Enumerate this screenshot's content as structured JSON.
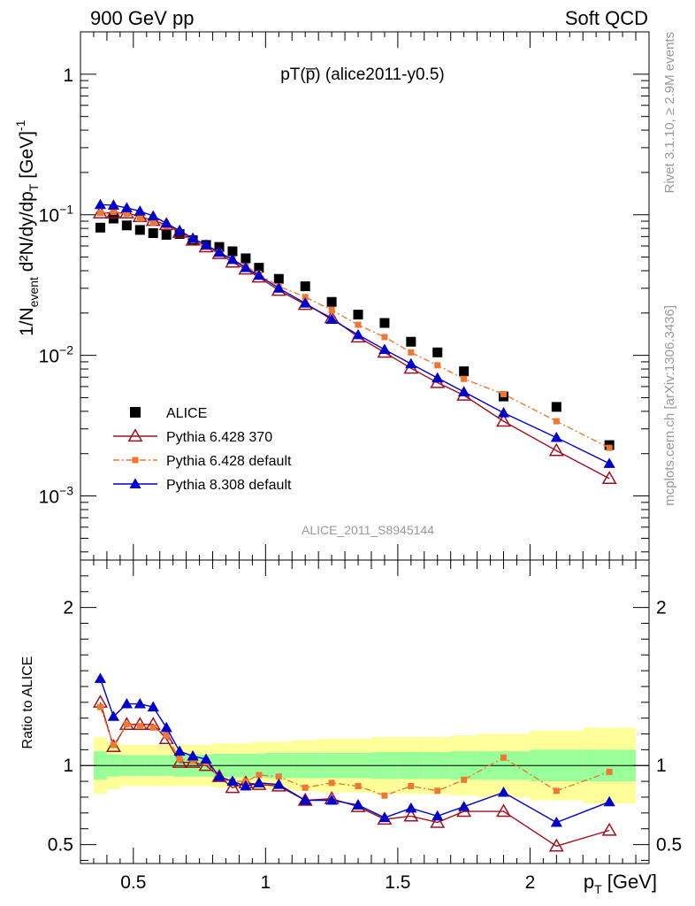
{
  "header": {
    "left": "900 GeV pp",
    "right": "Soft QCD"
  },
  "side_labels": {
    "rivet": "Rivet 3.1.10, ≥ 2.9M events",
    "mcplots": "mcplots.cern.ch [arXiv:1306.3436]"
  },
  "plot_title": "pT(p̅) (alice2011-y0.5)",
  "analysis_id": "ALICE_2011_S8945144",
  "colors": {
    "alice": "#000000",
    "py6_370": "#a01020",
    "py6_default": "#ee7733",
    "py8": "#0000cc",
    "band_inner": "#99ff99",
    "band_outer": "#ffff99"
  },
  "chart_data": [
    {
      "type": "scatter",
      "panel": "main",
      "ylabel_main": "1/N",
      "ylabel_sub": "event",
      "ylabel_rest": " d²N/dy/dp",
      "ylabel_sub2": "T",
      "ylabel_unit": " [GeV]",
      "ylabel_exp": "-1",
      "yscale": "log",
      "ylim": [
        0.00035,
        2.0
      ],
      "xlim": [
        0.3,
        2.45
      ],
      "yticks": [
        {
          "value": 1,
          "label": "1"
        },
        {
          "value": 0.1,
          "label": "10",
          "exp": "−1"
        },
        {
          "value": 0.01,
          "label": "10",
          "exp": "−2"
        },
        {
          "value": 0.001,
          "label": "10",
          "exp": "−3"
        }
      ],
      "x": [
        0.375,
        0.425,
        0.475,
        0.525,
        0.575,
        0.625,
        0.675,
        0.725,
        0.775,
        0.825,
        0.875,
        0.925,
        0.975,
        1.05,
        1.15,
        1.25,
        1.35,
        1.45,
        1.55,
        1.65,
        1.75,
        1.9,
        2.1,
        2.3
      ],
      "series": [
        {
          "name": "ALICE",
          "marker": "square",
          "values": [
            0.081,
            0.094,
            0.084,
            0.078,
            0.074,
            0.072,
            0.073,
            0.066,
            0.061,
            0.059,
            0.055,
            0.049,
            0.042,
            0.035,
            0.031,
            0.024,
            0.0195,
            0.017,
            0.0125,
            0.0105,
            0.0077,
            0.0051,
            0.0043,
            0.0023
          ]
        },
        {
          "name": "Pythia 6.428 370",
          "marker": "open-triangle",
          "values": [
            0.103,
            0.103,
            0.103,
            0.097,
            0.091,
            0.085,
            0.075,
            0.066,
            0.059,
            0.053,
            0.046,
            0.041,
            0.036,
            0.029,
            0.023,
            0.0185,
            0.0135,
            0.0105,
            0.0081,
            0.0064,
            0.0052,
            0.0034,
            0.0021,
            0.00133
          ]
        },
        {
          "name": "Pythia 6.428 default",
          "marker": "filled-square-small",
          "dashed": true,
          "values": [
            0.103,
            0.105,
            0.102,
            0.094,
            0.088,
            0.083,
            0.075,
            0.066,
            0.059,
            0.054,
            0.048,
            0.043,
            0.038,
            0.031,
            0.026,
            0.021,
            0.0165,
            0.0135,
            0.0105,
            0.0085,
            0.0068,
            0.0053,
            0.0034,
            0.0022
          ]
        },
        {
          "name": "Pythia 8.308 default",
          "marker": "filled-triangle",
          "values": [
            0.118,
            0.117,
            0.112,
            0.106,
            0.098,
            0.087,
            0.077,
            0.068,
            0.061,
            0.054,
            0.048,
            0.042,
            0.037,
            0.03,
            0.0235,
            0.018,
            0.014,
            0.011,
            0.0087,
            0.0069,
            0.0055,
            0.0039,
            0.0026,
            0.0017
          ]
        }
      ]
    },
    {
      "type": "line",
      "panel": "ratio",
      "ylabel": "Ratio to ALICE",
      "xlabel": "p",
      "xlabel_sub": "T",
      "xlabel_unit": " [GeV]",
      "ylim": [
        0.38,
        2.3
      ],
      "xlim": [
        0.3,
        2.45
      ],
      "yticks": [
        0.5,
        1,
        2
      ],
      "ytick_labels": [
        "0.5",
        "1",
        "2"
      ],
      "xticks": [
        0.5,
        1,
        1.5,
        2
      ],
      "xtick_labels": [
        "0.5",
        "1",
        "1.5",
        "2"
      ],
      "reference_line": 1,
      "x": [
        0.375,
        0.425,
        0.475,
        0.525,
        0.575,
        0.625,
        0.675,
        0.725,
        0.775,
        0.825,
        0.875,
        0.925,
        0.975,
        1.05,
        1.15,
        1.25,
        1.35,
        1.45,
        1.55,
        1.65,
        1.75,
        1.9,
        2.1,
        2.3
      ],
      "bin_edges": [
        0.35,
        0.4,
        0.45,
        0.5,
        0.55,
        0.6,
        0.65,
        0.7,
        0.75,
        0.8,
        0.85,
        0.9,
        0.95,
        1.0,
        1.1,
        1.2,
        1.3,
        1.4,
        1.5,
        1.6,
        1.7,
        1.8,
        2.0,
        2.2,
        2.4
      ],
      "band_inner_halfwidth": [
        0.09,
        0.07,
        0.065,
        0.065,
        0.065,
        0.065,
        0.07,
        0.07,
        0.07,
        0.075,
        0.075,
        0.075,
        0.075,
        0.08,
        0.08,
        0.08,
        0.08,
        0.085,
        0.085,
        0.085,
        0.09,
        0.09,
        0.1,
        0.1
      ],
      "band_outer_halfwidth": [
        0.18,
        0.15,
        0.13,
        0.13,
        0.13,
        0.13,
        0.13,
        0.13,
        0.13,
        0.14,
        0.14,
        0.14,
        0.15,
        0.15,
        0.16,
        0.17,
        0.17,
        0.18,
        0.18,
        0.18,
        0.19,
        0.2,
        0.22,
        0.24
      ],
      "series": [
        {
          "name": "Pythia 6.428 370",
          "values": [
            1.4,
            1.12,
            1.26,
            1.26,
            1.26,
            1.17,
            1.02,
            1.02,
            1.0,
            0.93,
            0.86,
            0.89,
            0.88,
            0.87,
            0.78,
            0.79,
            0.74,
            0.66,
            0.68,
            0.64,
            0.71,
            0.71,
            0.49,
            0.59
          ]
        },
        {
          "name": "Pythia 6.428 default",
          "values": [
            1.37,
            1.13,
            1.26,
            1.25,
            1.24,
            1.19,
            1.04,
            1.03,
            1.02,
            0.92,
            0.9,
            0.9,
            0.94,
            0.93,
            0.86,
            0.89,
            0.87,
            0.81,
            0.87,
            0.84,
            0.91,
            1.05,
            0.84,
            0.96
          ]
        },
        {
          "name": "Pythia 8.308 default",
          "values": [
            1.55,
            1.31,
            1.39,
            1.39,
            1.37,
            1.24,
            1.09,
            1.06,
            1.04,
            0.93,
            0.9,
            0.87,
            0.89,
            0.88,
            0.78,
            0.78,
            0.75,
            0.67,
            0.73,
            0.68,
            0.74,
            0.83,
            0.64,
            0.77
          ]
        }
      ]
    }
  ]
}
